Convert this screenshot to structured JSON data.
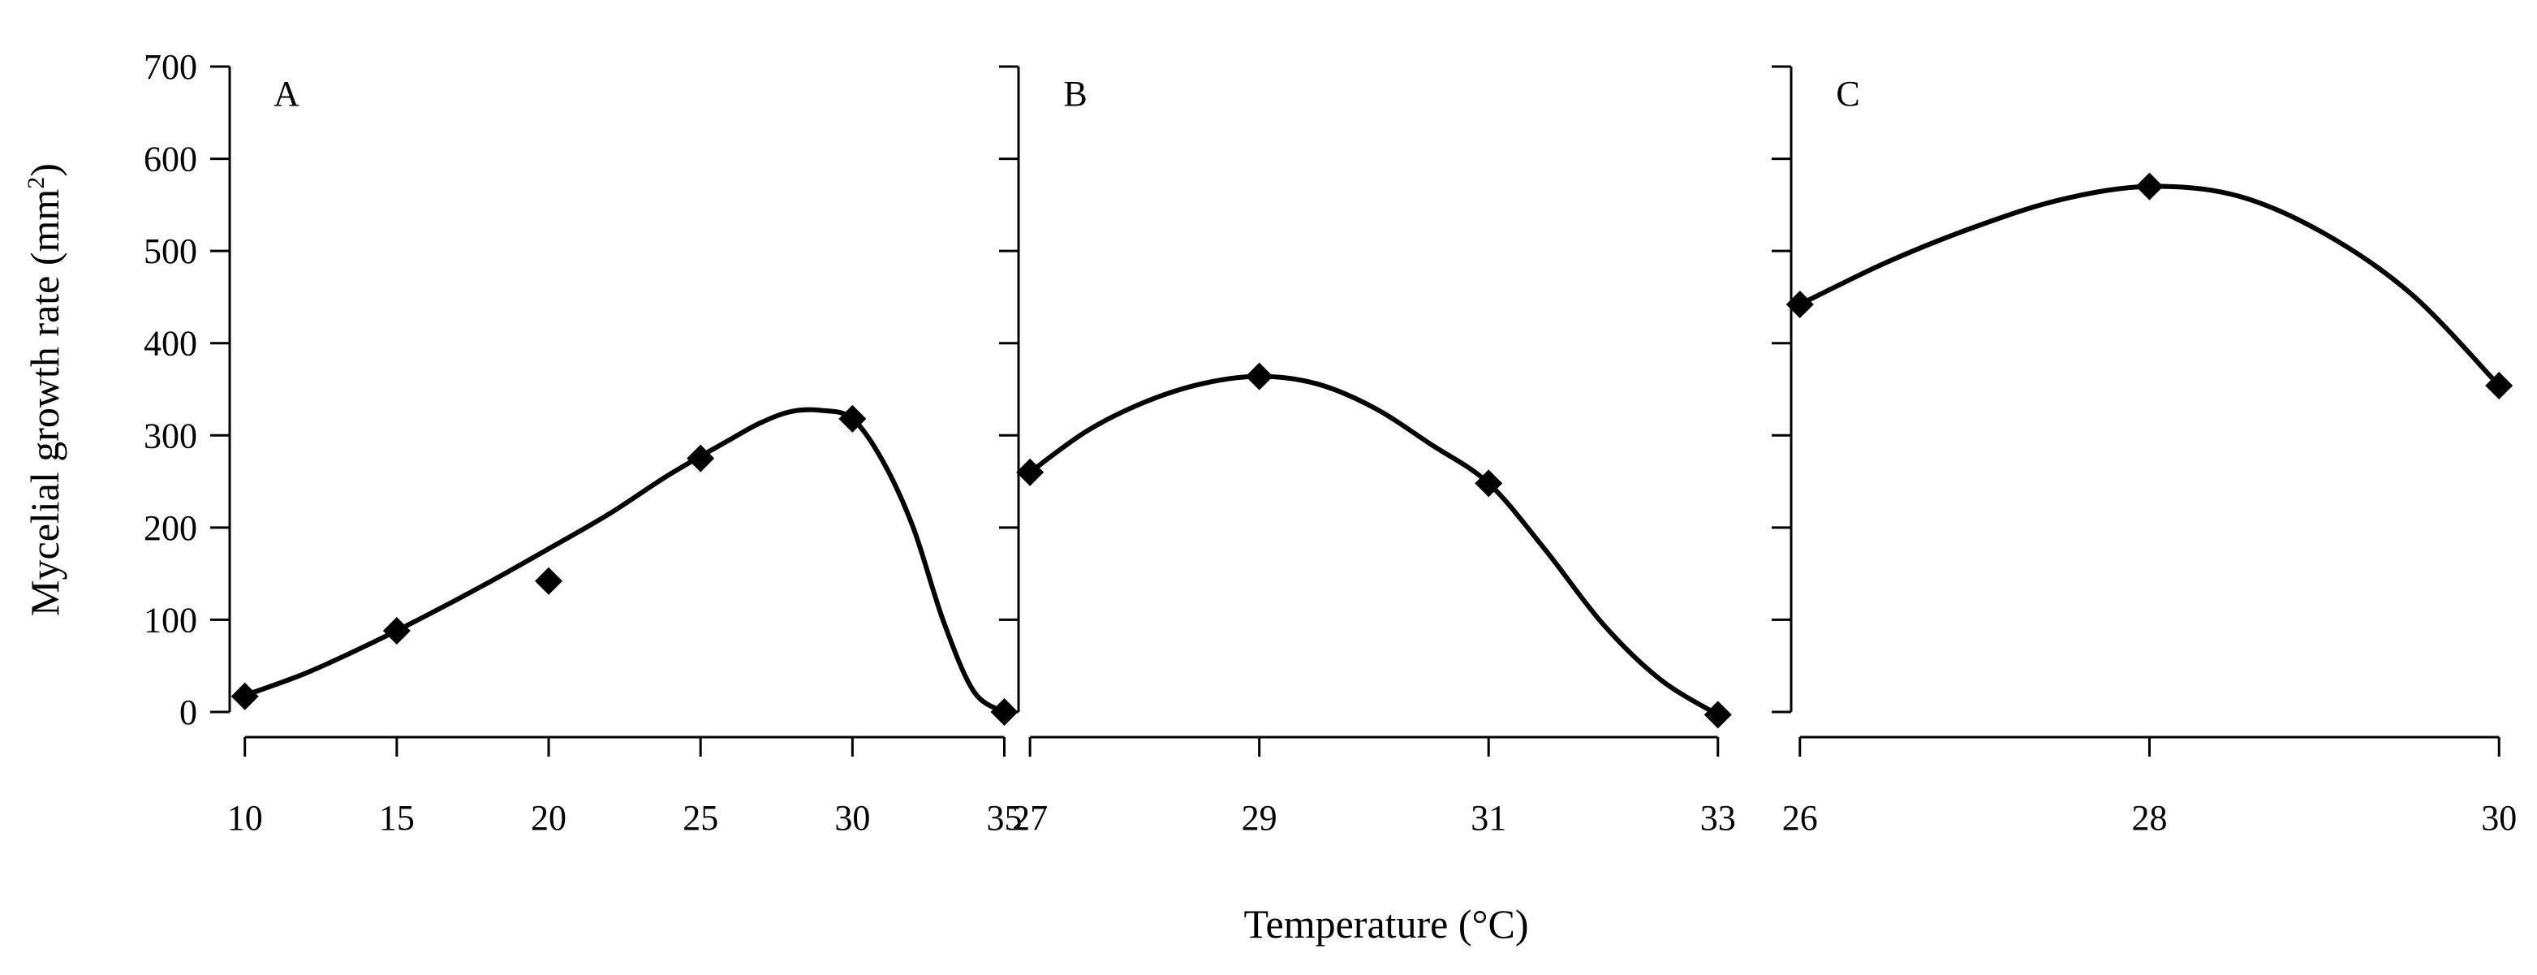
{
  "chart_data": {
    "type": "scatter",
    "shared": {
      "ylabel": "Mycelial growth rate (mm",
      "ylabel_sup": "2",
      "ylabel_close": ")",
      "xlabel": "Temperature (°C)",
      "ylim": [
        0,
        700
      ],
      "yticks": [
        0,
        100,
        200,
        300,
        400,
        500,
        600,
        700
      ],
      "marker": "diamond",
      "marker_color": "#000000",
      "line_color": "#000000"
    },
    "panels": [
      {
        "label": "A",
        "xlim": [
          9.5,
          35.2
        ],
        "x_ticks": [
          10,
          15,
          20,
          25,
          30,
          35
        ],
        "x_tick_labels": [
          "10",
          "15",
          "20",
          "25",
          "30",
          "35"
        ],
        "x": [
          10,
          15,
          20,
          25,
          30,
          35
        ],
        "y": [
          17,
          88,
          142,
          275,
          318,
          0
        ],
        "fit_curve": {
          "x": [
            10,
            12,
            14,
            16,
            18,
            20,
            22,
            24,
            26,
            27,
            28,
            29,
            30,
            31,
            32,
            33,
            34,
            35
          ],
          "y": [
            18,
            42,
            72,
            105,
            140,
            177,
            215,
            258,
            296,
            314,
            326,
            327,
            318,
            272,
            200,
            98,
            22,
            0
          ]
        }
      },
      {
        "label": "B",
        "xlim": [
          26.9,
          33.2
        ],
        "x_ticks": [
          27,
          29,
          31,
          33
        ],
        "x_tick_labels": [
          "27",
          "29",
          "31",
          "33"
        ],
        "x": [
          27,
          29,
          31,
          33
        ],
        "y": [
          260,
          364,
          248,
          -3
        ],
        "fit_curve": {
          "x": [
            27,
            27.5,
            28,
            28.5,
            29,
            29.5,
            30,
            30.5,
            31,
            31.5,
            32,
            32.5,
            33
          ],
          "y": [
            260,
            305,
            336,
            356,
            364,
            356,
            330,
            290,
            248,
            175,
            95,
            35,
            -3
          ]
        }
      },
      {
        "label": "C",
        "xlim": [
          25.95,
          30.05
        ],
        "x_ticks": [
          26,
          28,
          30
        ],
        "x_tick_labels": [
          "26",
          "28",
          "30"
        ],
        "x": [
          26,
          28,
          30
        ],
        "y": [
          442,
          570,
          354
        ],
        "fit_curve": {
          "x": [
            26,
            26.5,
            27,
            27.5,
            28,
            28.5,
            29,
            29.5,
            30
          ],
          "y": [
            442,
            488,
            526,
            556,
            570,
            560,
            519,
            453,
            354
          ]
        }
      }
    ]
  }
}
